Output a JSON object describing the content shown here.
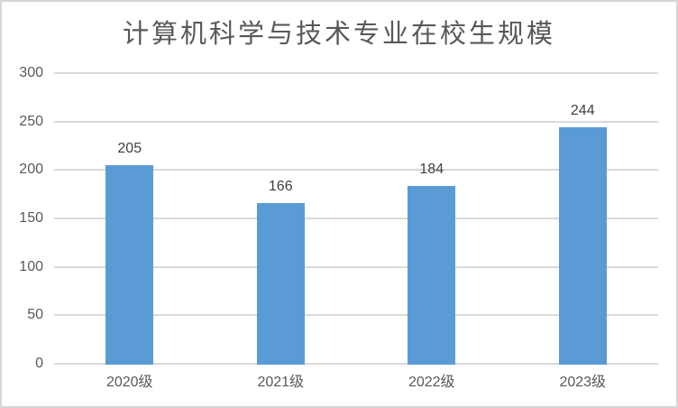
{
  "chart": {
    "background": "#FFFFFF",
    "border_color": "#D5D5D5"
  },
  "chart_data": {
    "type": "bar",
    "title": "计算机科学与技术专业在校生规模",
    "categories": [
      "2020级",
      "2021级",
      "2022级",
      "2023级"
    ],
    "values": [
      205,
      166,
      184,
      244
    ],
    "data_labels": [
      "205",
      "166",
      "184",
      "244"
    ],
    "xlabel": "",
    "ylabel": "",
    "ylim": [
      0,
      300
    ],
    "yticks": [
      0,
      50,
      100,
      150,
      200,
      250,
      300
    ],
    "grid": true,
    "legend_position": "none",
    "bar_color": "#5B9BD5",
    "gridline_color": "#D9D9D9",
    "axis_line_color": "#D9D9D9",
    "title_color": "#595959",
    "tick_label_color": "#595959",
    "data_label_color": "#404040"
  }
}
